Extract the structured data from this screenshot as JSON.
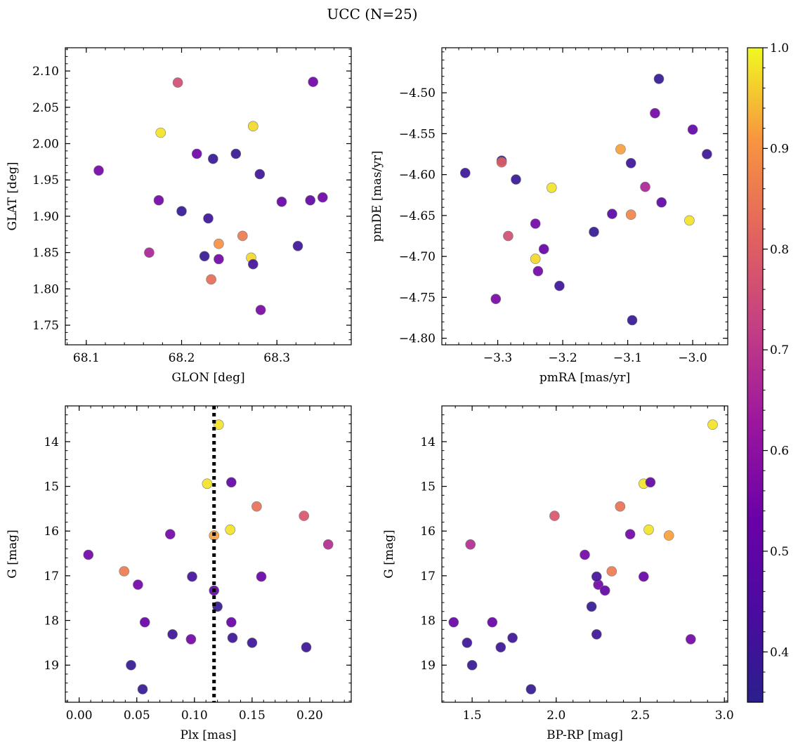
{
  "title": "UCC (N=25)",
  "colorbar": {
    "min": 0.35,
    "max": 1.0,
    "ticks": [
      0.4,
      0.5,
      0.6,
      0.7,
      0.8,
      0.9,
      1.0
    ],
    "tick_labels": [
      "0.4",
      "0.5",
      "0.6",
      "0.7",
      "0.8",
      "0.9",
      "1.0"
    ],
    "colormap": "plasma"
  },
  "chart_data": [
    {
      "type": "scatter",
      "xlabel": "GLON [deg]",
      "ylabel": "GLAT [deg]",
      "xlim": [
        68.078,
        68.378
      ],
      "ylim": [
        1.723,
        2.132
      ],
      "y_inverted": false,
      "xticks": [
        68.1,
        68.2,
        68.3
      ],
      "xtick_labels": [
        "68.1",
        "68.2",
        "68.3"
      ],
      "yticks": [
        1.75,
        1.8,
        1.85,
        1.9,
        1.95,
        2.0,
        2.05,
        2.1
      ],
      "ytick_labels": [
        "1.75",
        "1.80",
        "1.85",
        "1.90",
        "1.95",
        "2.00",
        "2.05",
        "2.10"
      ],
      "points": [
        {
          "x": 68.113,
          "y": 1.963,
          "c": 0.55
        },
        {
          "x": 68.196,
          "y": 2.084,
          "c": 0.76
        },
        {
          "x": 68.178,
          "y": 2.015,
          "c": 0.98
        },
        {
          "x": 68.338,
          "y": 2.085,
          "c": 0.54
        },
        {
          "x": 68.275,
          "y": 2.024,
          "c": 0.97
        },
        {
          "x": 68.216,
          "y": 1.986,
          "c": 0.54
        },
        {
          "x": 68.233,
          "y": 1.979,
          "c": 0.38
        },
        {
          "x": 68.257,
          "y": 1.986,
          "c": 0.38
        },
        {
          "x": 68.282,
          "y": 1.958,
          "c": 0.4
        },
        {
          "x": 68.176,
          "y": 1.922,
          "c": 0.55
        },
        {
          "x": 68.2,
          "y": 1.907,
          "c": 0.38
        },
        {
          "x": 68.228,
          "y": 1.897,
          "c": 0.4
        },
        {
          "x": 68.305,
          "y": 1.92,
          "c": 0.52
        },
        {
          "x": 68.335,
          "y": 1.922,
          "c": 0.5
        },
        {
          "x": 68.348,
          "y": 1.926,
          "c": 0.54
        },
        {
          "x": 68.166,
          "y": 1.85,
          "c": 0.66
        },
        {
          "x": 68.224,
          "y": 1.845,
          "c": 0.38
        },
        {
          "x": 68.239,
          "y": 1.862,
          "c": 0.9
        },
        {
          "x": 68.239,
          "y": 1.841,
          "c": 0.55
        },
        {
          "x": 68.264,
          "y": 1.873,
          "c": 0.86
        },
        {
          "x": 68.273,
          "y": 1.843,
          "c": 0.97
        },
        {
          "x": 68.275,
          "y": 1.834,
          "c": 0.42
        },
        {
          "x": 68.322,
          "y": 1.859,
          "c": 0.4
        },
        {
          "x": 68.231,
          "y": 1.813,
          "c": 0.83
        },
        {
          "x": 68.283,
          "y": 1.771,
          "c": 0.56
        }
      ]
    },
    {
      "type": "scatter",
      "xlabel": "pmRA [mas/yr]",
      "ylabel": "pmDE [mas/yr]",
      "xlim": [
        -3.386,
        -2.946
      ],
      "ylim": [
        -4.808,
        -4.445
      ],
      "y_inverted": false,
      "xticks": [
        -3.3,
        -3.2,
        -3.1,
        -3.0
      ],
      "xtick_labels": [
        "−3.3",
        "−3.2",
        "−3.1",
        "−3.0"
      ],
      "yticks": [
        -4.8,
        -4.75,
        -4.7,
        -4.65,
        -4.6,
        -4.55,
        -4.5
      ],
      "ytick_labels": [
        "−4.80",
        "−4.75",
        "−4.70",
        "−4.65",
        "−4.60",
        "−4.55",
        "−4.50"
      ],
      "points": [
        {
          "x": -3.052,
          "y": -4.483,
          "c": 0.38
        },
        {
          "x": -3.058,
          "y": -4.525,
          "c": 0.55
        },
        {
          "x": -3.0,
          "y": -4.545,
          "c": 0.5
        },
        {
          "x": -3.111,
          "y": -4.569,
          "c": 0.92
        },
        {
          "x": -2.978,
          "y": -4.575,
          "c": 0.4
        },
        {
          "x": -3.294,
          "y": -4.583,
          "c": 0.4
        },
        {
          "x": -3.294,
          "y": -4.585,
          "c": 0.8
        },
        {
          "x": -3.095,
          "y": -4.586,
          "c": 0.4
        },
        {
          "x": -3.35,
          "y": -4.598,
          "c": 0.4
        },
        {
          "x": -3.272,
          "y": -4.606,
          "c": 0.38
        },
        {
          "x": -3.217,
          "y": -4.616,
          "c": 0.98
        },
        {
          "x": -3.073,
          "y": -4.615,
          "c": 0.66
        },
        {
          "x": -3.048,
          "y": -4.634,
          "c": 0.5
        },
        {
          "x": -3.124,
          "y": -4.648,
          "c": 0.48
        },
        {
          "x": -3.095,
          "y": -4.649,
          "c": 0.88
        },
        {
          "x": -3.005,
          "y": -4.656,
          "c": 0.98
        },
        {
          "x": -3.242,
          "y": -4.66,
          "c": 0.55
        },
        {
          "x": -3.152,
          "y": -4.67,
          "c": 0.38
        },
        {
          "x": -3.284,
          "y": -4.675,
          "c": 0.76
        },
        {
          "x": -3.229,
          "y": -4.691,
          "c": 0.52
        },
        {
          "x": -3.242,
          "y": -4.703,
          "c": 0.97
        },
        {
          "x": -3.238,
          "y": -4.718,
          "c": 0.55
        },
        {
          "x": -3.205,
          "y": -4.736,
          "c": 0.4
        },
        {
          "x": -3.303,
          "y": -4.752,
          "c": 0.56
        },
        {
          "x": -3.093,
          "y": -4.778,
          "c": 0.38
        }
      ]
    },
    {
      "type": "scatter",
      "xlabel": "Plx [mas]",
      "ylabel": "G [mag]",
      "xlim": [
        -0.012,
        0.236
      ],
      "ylim": [
        13.2,
        19.83
      ],
      "y_inverted": true,
      "xticks": [
        0.0,
        0.05,
        0.1,
        0.15,
        0.2
      ],
      "xtick_labels": [
        "0.00",
        "0.05",
        "0.10",
        "0.15",
        "0.20"
      ],
      "yticks": [
        14,
        15,
        16,
        17,
        18,
        19
      ],
      "ytick_labels": [
        "14",
        "15",
        "16",
        "17",
        "18",
        "19"
      ],
      "vline": {
        "x": 0.117,
        "style": "dotted",
        "color": "#000000"
      },
      "points": [
        {
          "x": 0.121,
          "y": 13.62,
          "c": 0.98
        },
        {
          "x": 0.111,
          "y": 14.94,
          "c": 0.98
        },
        {
          "x": 0.132,
          "y": 14.91,
          "c": 0.5
        },
        {
          "x": 0.154,
          "y": 15.45,
          "c": 0.84
        },
        {
          "x": 0.195,
          "y": 15.66,
          "c": 0.78
        },
        {
          "x": 0.131,
          "y": 15.97,
          "c": 0.98
        },
        {
          "x": 0.117,
          "y": 16.1,
          "c": 0.92
        },
        {
          "x": 0.079,
          "y": 16.07,
          "c": 0.55
        },
        {
          "x": 0.216,
          "y": 16.3,
          "c": 0.68
        },
        {
          "x": 0.008,
          "y": 16.53,
          "c": 0.55
        },
        {
          "x": 0.039,
          "y": 16.9,
          "c": 0.86
        },
        {
          "x": 0.051,
          "y": 17.2,
          "c": 0.55
        },
        {
          "x": 0.098,
          "y": 17.02,
          "c": 0.42
        },
        {
          "x": 0.158,
          "y": 17.02,
          "c": 0.52
        },
        {
          "x": 0.117,
          "y": 17.33,
          "c": 0.5
        },
        {
          "x": 0.12,
          "y": 17.69,
          "c": 0.38
        },
        {
          "x": 0.057,
          "y": 18.04,
          "c": 0.52
        },
        {
          "x": 0.132,
          "y": 18.04,
          "c": 0.52
        },
        {
          "x": 0.081,
          "y": 18.31,
          "c": 0.4
        },
        {
          "x": 0.097,
          "y": 18.42,
          "c": 0.55
        },
        {
          "x": 0.133,
          "y": 18.39,
          "c": 0.4
        },
        {
          "x": 0.15,
          "y": 18.5,
          "c": 0.4
        },
        {
          "x": 0.197,
          "y": 18.6,
          "c": 0.4
        },
        {
          "x": 0.045,
          "y": 19.0,
          "c": 0.38
        },
        {
          "x": 0.055,
          "y": 19.54,
          "c": 0.38
        }
      ]
    },
    {
      "type": "scatter",
      "xlabel": "BP-RP [mag]",
      "ylabel": "G [mag]",
      "xlim": [
        1.32,
        3.02
      ],
      "ylim": [
        13.2,
        19.83
      ],
      "y_inverted": true,
      "xticks": [
        1.5,
        2.0,
        2.5,
        3.0
      ],
      "xtick_labels": [
        "1.5",
        "2.0",
        "2.5",
        "3.0"
      ],
      "yticks": [
        14,
        15,
        16,
        17,
        18,
        19
      ],
      "ytick_labels": [
        "14",
        "15",
        "16",
        "17",
        "18",
        "19"
      ],
      "points": [
        {
          "x": 2.93,
          "y": 13.62,
          "c": 0.98
        },
        {
          "x": 2.52,
          "y": 14.94,
          "c": 0.98
        },
        {
          "x": 2.56,
          "y": 14.91,
          "c": 0.5
        },
        {
          "x": 2.38,
          "y": 15.45,
          "c": 0.84
        },
        {
          "x": 1.99,
          "y": 15.66,
          "c": 0.78
        },
        {
          "x": 2.55,
          "y": 15.97,
          "c": 0.98
        },
        {
          "x": 2.67,
          "y": 16.1,
          "c": 0.92
        },
        {
          "x": 2.44,
          "y": 16.07,
          "c": 0.55
        },
        {
          "x": 1.49,
          "y": 16.3,
          "c": 0.68
        },
        {
          "x": 2.17,
          "y": 16.53,
          "c": 0.55
        },
        {
          "x": 2.33,
          "y": 16.9,
          "c": 0.86
        },
        {
          "x": 2.25,
          "y": 17.2,
          "c": 0.55
        },
        {
          "x": 2.24,
          "y": 17.02,
          "c": 0.42
        },
        {
          "x": 2.52,
          "y": 17.02,
          "c": 0.52
        },
        {
          "x": 2.29,
          "y": 17.33,
          "c": 0.5
        },
        {
          "x": 2.21,
          "y": 17.69,
          "c": 0.38
        },
        {
          "x": 1.39,
          "y": 18.04,
          "c": 0.52
        },
        {
          "x": 1.62,
          "y": 18.04,
          "c": 0.52
        },
        {
          "x": 2.24,
          "y": 18.31,
          "c": 0.4
        },
        {
          "x": 2.8,
          "y": 18.42,
          "c": 0.55
        },
        {
          "x": 1.74,
          "y": 18.39,
          "c": 0.4
        },
        {
          "x": 1.47,
          "y": 18.5,
          "c": 0.4
        },
        {
          "x": 1.67,
          "y": 18.6,
          "c": 0.4
        },
        {
          "x": 1.5,
          "y": 19.0,
          "c": 0.38
        },
        {
          "x": 1.85,
          "y": 19.54,
          "c": 0.38
        }
      ]
    }
  ]
}
